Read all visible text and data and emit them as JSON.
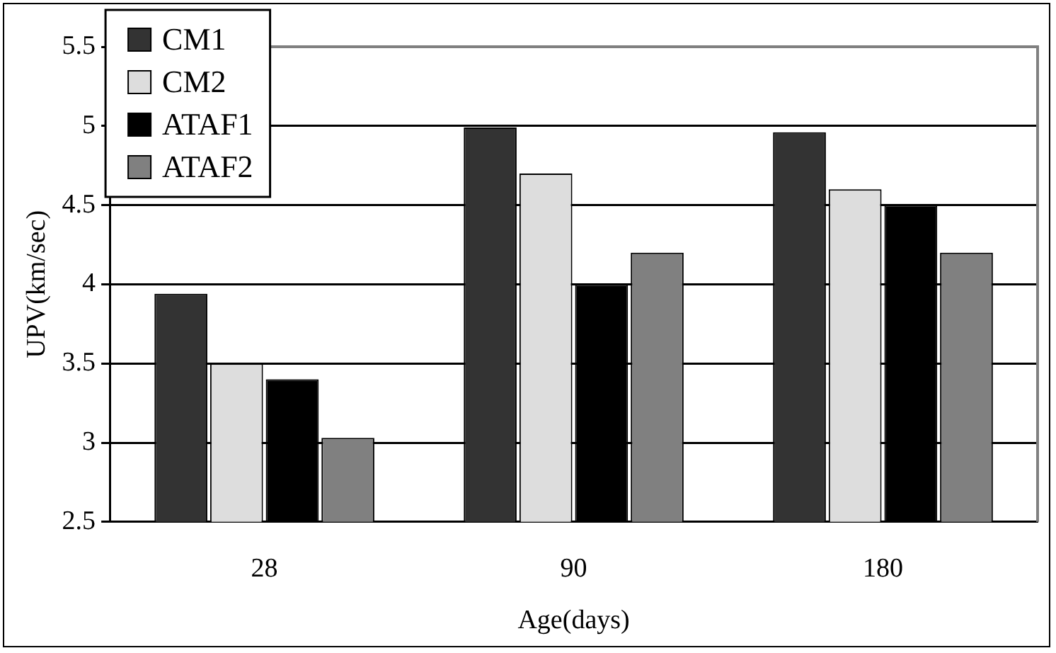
{
  "chart_data": {
    "type": "bar",
    "xlabel": "Age(days)",
    "ylabel": "UPV(km/sec)",
    "categories": [
      "28",
      "90",
      "180"
    ],
    "series": [
      {
        "name": "CM1",
        "color": "#333333",
        "values": [
          3.94,
          4.99,
          4.96
        ]
      },
      {
        "name": "CM2",
        "color": "#dddddd",
        "values": [
          3.5,
          4.7,
          4.6
        ]
      },
      {
        "name": "ATAF1",
        "color": "#000000",
        "values": [
          3.4,
          4.0,
          4.5
        ]
      },
      {
        "name": "ATAF2",
        "color": "#808080",
        "values": [
          3.03,
          4.2,
          4.2
        ]
      }
    ],
    "ylim": [
      2.5,
      5.5
    ],
    "yticks": [
      "2.5",
      3,
      "3.5",
      4,
      "4.5",
      5,
      "5.5"
    ],
    "grid": "y",
    "legend": "top left"
  }
}
